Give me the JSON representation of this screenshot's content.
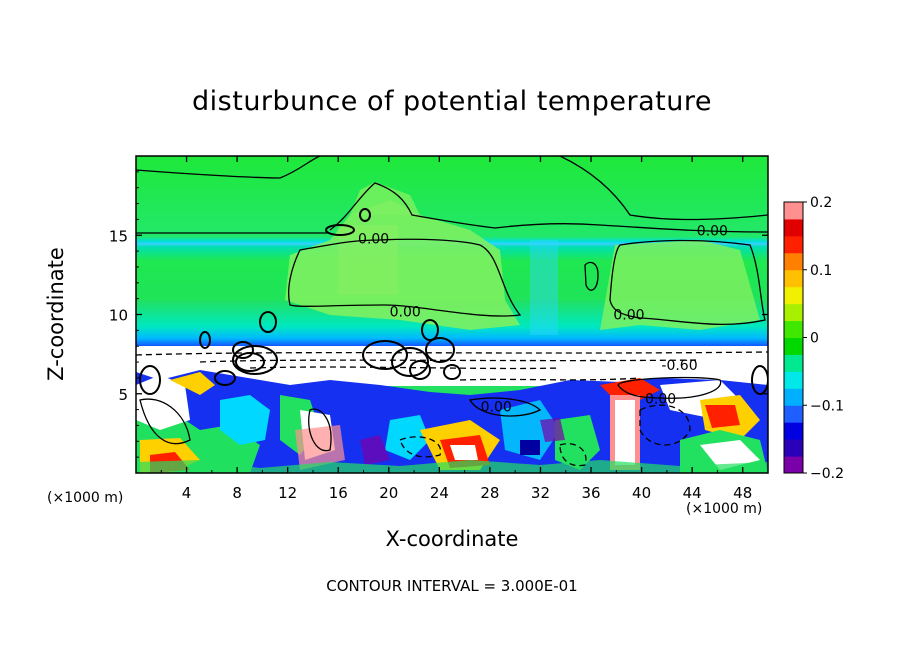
{
  "chart_data": {
    "type": "heatmap",
    "title": "disturbunce of potential temperature",
    "xlabel": "X-coordinate",
    "ylabel": "Z-coordinate",
    "x_unit": "(×1000 m)",
    "x_ticks": [
      4,
      8,
      12,
      16,
      20,
      24,
      28,
      32,
      36,
      40,
      44,
      48
    ],
    "y_ticks": [
      5,
      10,
      15
    ],
    "xlim": [
      0,
      50
    ],
    "ylim": [
      0,
      20
    ],
    "colorbar": {
      "ticks": [
        "0.2",
        "0.1",
        "0",
        "−0.1",
        "−0.2"
      ],
      "tick_values": [
        0.2,
        0.1,
        0,
        -0.1,
        -0.2
      ],
      "range": [
        -0.2,
        0.2
      ],
      "colors": [
        "#7a00a8",
        "#2a00b8",
        "#0000e0",
        "#1f5fff",
        "#00b0ff",
        "#00e8e8",
        "#00e890",
        "#00d800",
        "#40e800",
        "#a8f000",
        "#f0f000",
        "#ffc000",
        "#ff8000",
        "#ff2000",
        "#e00000",
        "#ff9090"
      ]
    },
    "contour_labels": [
      {
        "x": 18.8,
        "z": 14.8,
        "text": "0.00"
      },
      {
        "x": 45.6,
        "z": 15.3,
        "text": "0.00"
      },
      {
        "x": 21.3,
        "z": 10.2,
        "text": "0.00"
      },
      {
        "x": 39.0,
        "z": 10.0,
        "text": "0.00"
      },
      {
        "x": 43.0,
        "z": 6.8,
        "text": "-0.60"
      },
      {
        "x": 28.5,
        "z": 4.2,
        "text": "0.00"
      },
      {
        "x": 41.5,
        "z": 4.7,
        "text": "0.00"
      }
    ],
    "contour_interval_text": "CONTOUR INTERVAL = 3.000E-01",
    "grid": false
  }
}
